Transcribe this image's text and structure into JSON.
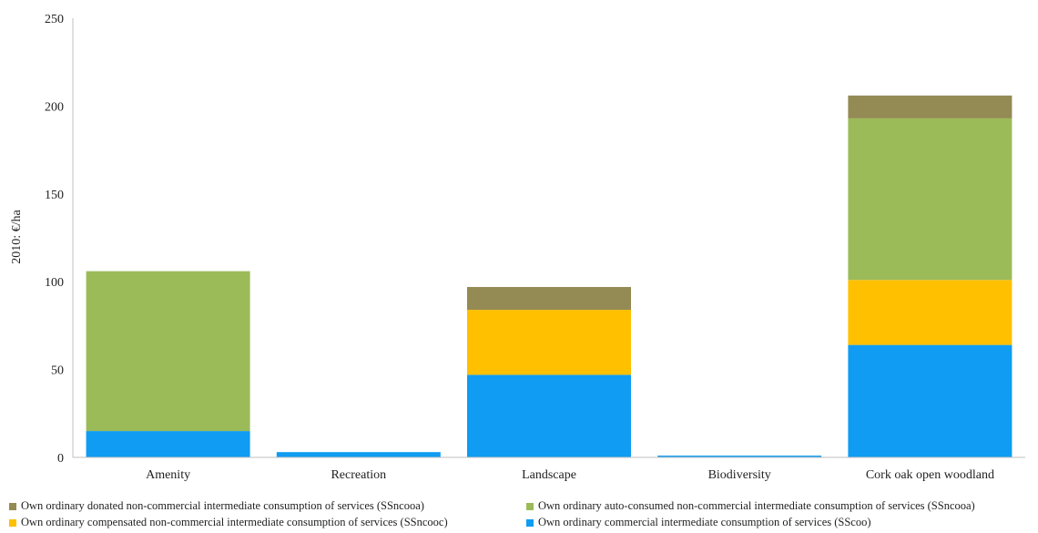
{
  "chart_data": {
    "type": "bar",
    "stacked": true,
    "title": "",
    "xlabel": "",
    "ylabel": "2010: €/ha",
    "ylim": [
      0,
      250
    ],
    "yticks": [
      0,
      50,
      100,
      150,
      200,
      250
    ],
    "grid": false,
    "legend_position": "bottom",
    "categories": [
      "Amenity",
      "Recreation",
      "Landscape",
      "Biodiversity",
      "Cork oak open woodland"
    ],
    "series": [
      {
        "name": "Own ordinary commercial intermediate consumption of services (SScoo)",
        "color": "#0f9cf2",
        "values": [
          15,
          3,
          47,
          1,
          64
        ]
      },
      {
        "name": "Own ordinary compensated non-commercial intermediate consumption of services (SSncooc)",
        "color": "#ffc000",
        "values": [
          0,
          0,
          37,
          0,
          37
        ]
      },
      {
        "name": "Own ordinary auto-consumed non-commercial intermediate consumption of services (SSncooa)",
        "color": "#9bbb59",
        "values": [
          91,
          0,
          0,
          0,
          92
        ]
      },
      {
        "name": "Own ordinary donated non-commercial intermediate consumption of services (SSncooa)",
        "color": "#948a54",
        "values": [
          0,
          0,
          13,
          0,
          13
        ]
      }
    ],
    "legend_order": [
      3,
      2,
      1,
      0
    ]
  }
}
